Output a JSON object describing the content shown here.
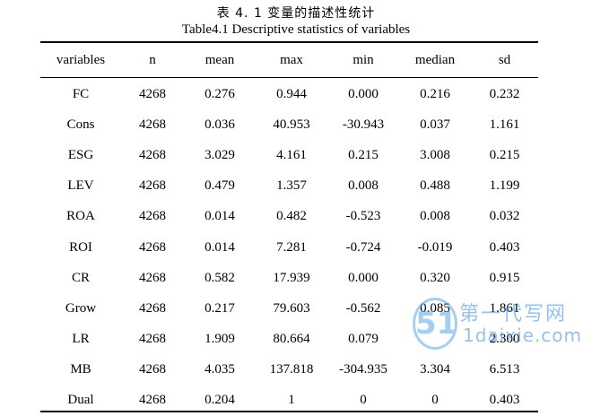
{
  "caption": {
    "cn": "表 4. 1  变量的描述性统计",
    "en": "Table4.1 Descriptive statistics of variables"
  },
  "table": {
    "headers": [
      "variables",
      "n",
      "mean",
      "max",
      "min",
      "median",
      "sd"
    ],
    "rows": [
      [
        "FC",
        "4268",
        "0.276",
        "0.944",
        "0.000",
        "0.216",
        "0.232"
      ],
      [
        "Cons",
        "4268",
        "0.036",
        "40.953",
        "-30.943",
        "0.037",
        "1.161"
      ],
      [
        "ESG",
        "4268",
        "3.029",
        "4.161",
        "0.215",
        "3.008",
        "0.215"
      ],
      [
        "LEV",
        "4268",
        "0.479",
        "1.357",
        "0.008",
        "0.488",
        "1.199"
      ],
      [
        "ROA",
        "4268",
        "0.014",
        "0.482",
        "-0.523",
        "0.008",
        "0.032"
      ],
      [
        "ROI",
        "4268",
        "0.014",
        "7.281",
        "-0.724",
        "-0.019",
        "0.403"
      ],
      [
        "CR",
        "4268",
        "0.582",
        "17.939",
        "0.000",
        "0.320",
        "0.915"
      ],
      [
        "Grow",
        "4268",
        "0.217",
        "79.603",
        "-0.562",
        "0.085",
        "1.861"
      ],
      [
        "LR",
        "4268",
        "1.909",
        "80.664",
        "0.079",
        "",
        "2.300"
      ],
      [
        "MB",
        "4268",
        "4.035",
        "137.818",
        "-304.935",
        "3.304",
        "6.513"
      ],
      [
        "Dual",
        "4268",
        "0.204",
        "1",
        "0",
        "0",
        "0.403"
      ]
    ]
  },
  "watermark": {
    "logo": "51",
    "line1": "第一代写网",
    "line2": "1daixie.com",
    "color": "#3f8fd9"
  }
}
